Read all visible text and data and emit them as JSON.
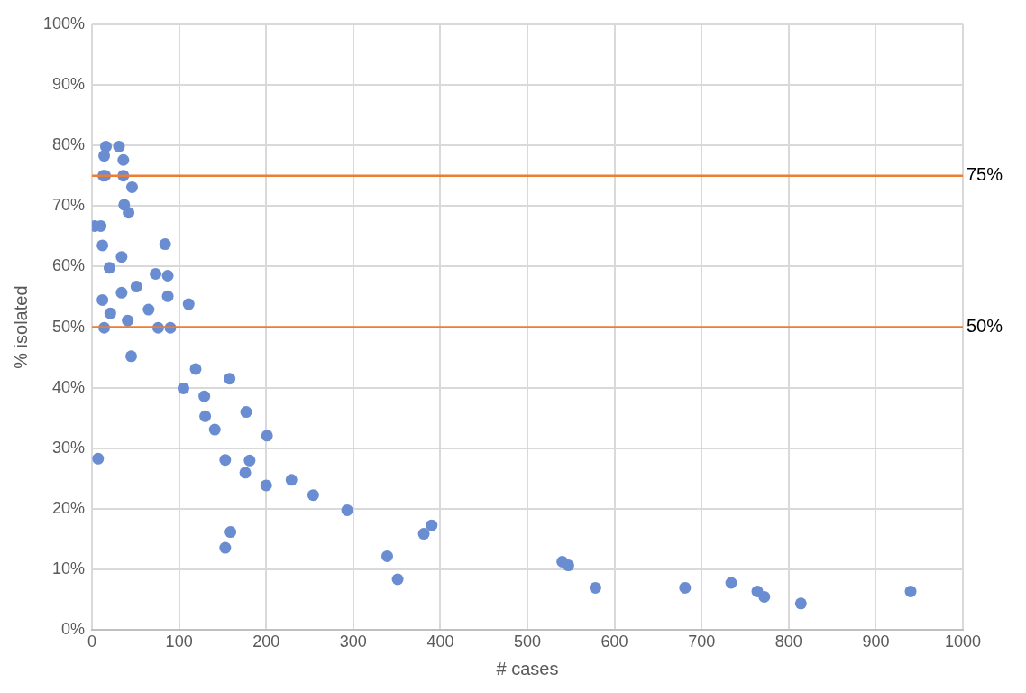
{
  "chart_data": {
    "type": "scatter",
    "xlabel": "# cases",
    "ylabel": "% isolated",
    "x": [
      3,
      10,
      12,
      16,
      14,
      13,
      15,
      31,
      36,
      36,
      46,
      37,
      42,
      34,
      20,
      12,
      34,
      21,
      14,
      41,
      51,
      45,
      73,
      84,
      87,
      87,
      111,
      65,
      76,
      90,
      7,
      119,
      105,
      129,
      130,
      141,
      158,
      177,
      201,
      153,
      181,
      176,
      200,
      229,
      254,
      293,
      159,
      153,
      339,
      351,
      381,
      390,
      540,
      547,
      578,
      681,
      734,
      764,
      772,
      814,
      940
    ],
    "series": [
      {
        "color": "#6a8dd2",
        "values": [
          66.7,
          66.7,
          63.5,
          79.8,
          78.3,
          75,
          75,
          79.8,
          77.6,
          75,
          73.1,
          70.2,
          68.9,
          61.6,
          59.8,
          54.5,
          55.7,
          52.3,
          49.9,
          51.1,
          56.7,
          45.2,
          58.8,
          63.7,
          58.5,
          55.1,
          53.8,
          52.9,
          49.9,
          49.9,
          28.3,
          43.1,
          39.9,
          38.6,
          35.3,
          33.1,
          41.5,
          36,
          32.1,
          28.1,
          28,
          26,
          23.9,
          24.8,
          22.3,
          19.8,
          16.2,
          13.6,
          12.2,
          8.4,
          15.9,
          17.3,
          11.3,
          10.7,
          7,
          7,
          7.8,
          6.4,
          5.5,
          4.4,
          6.4
        ]
      }
    ],
    "xlim": [
      0,
      1000
    ],
    "xticks": [
      0,
      100,
      200,
      300,
      400,
      500,
      600,
      700,
      800,
      900,
      1000
    ],
    "ylim": [
      0,
      100
    ],
    "yticks": [
      {
        "value": 0,
        "label": "0%"
      },
      {
        "value": 10,
        "label": "10%"
      },
      {
        "value": 20,
        "label": "20%"
      },
      {
        "value": 30,
        "label": "30%"
      },
      {
        "value": 40,
        "label": "40%"
      },
      {
        "value": 50,
        "label": "50%"
      },
      {
        "value": 60,
        "label": "60%"
      },
      {
        "value": 70,
        "label": "70%"
      },
      {
        "value": 80,
        "label": "80%"
      },
      {
        "value": 90,
        "label": "90%"
      },
      {
        "value": 100,
        "label": "100%"
      }
    ],
    "ref_lines": [
      {
        "axis": "y",
        "value": 75,
        "label": "75%",
        "color": "#ed7d31"
      },
      {
        "axis": "y",
        "value": 50,
        "label": "50%",
        "color": "#ed7d31"
      }
    ],
    "grid": true,
    "legend": false,
    "marker": "circle"
  }
}
